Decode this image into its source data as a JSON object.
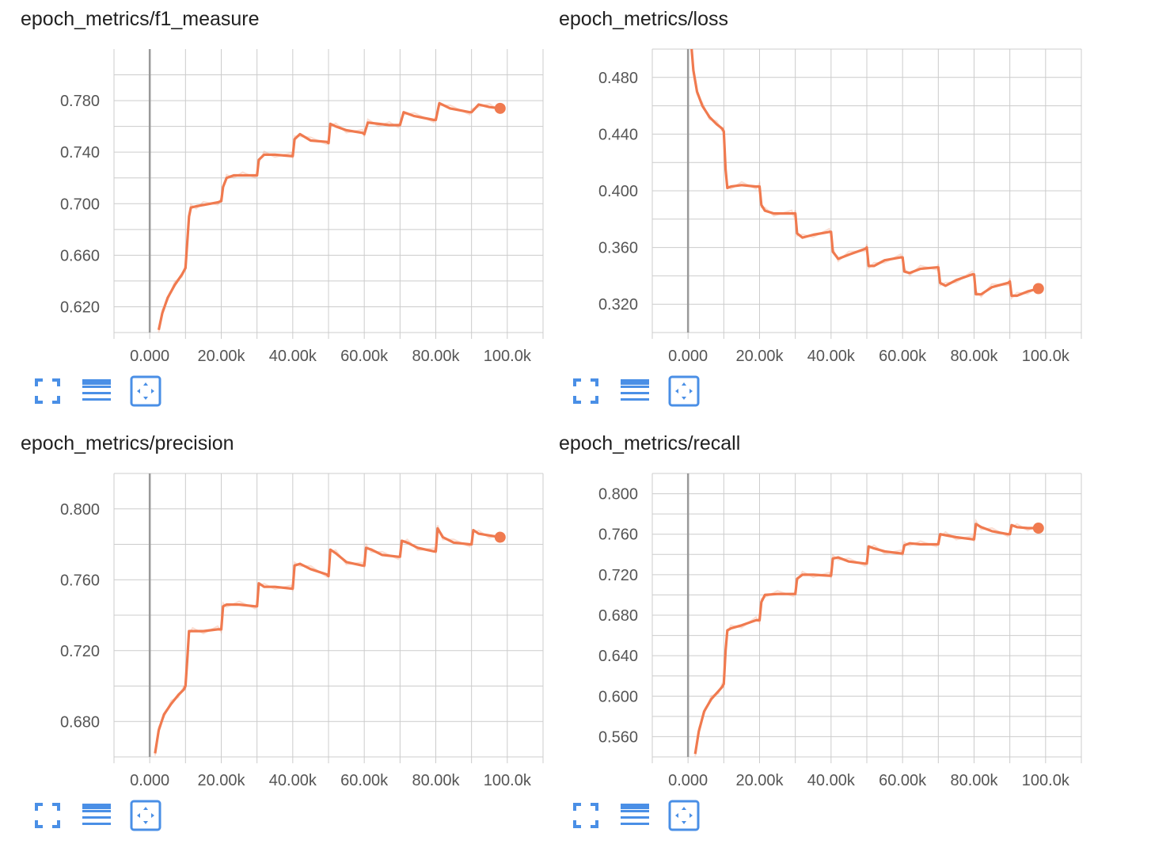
{
  "accent_color": "#f07a4f",
  "axis_color": "#999999",
  "grid_color": "#cccccc",
  "controls": {
    "icons": [
      "fullscreen-icon",
      "list-icon",
      "fit-domain-icon"
    ],
    "color": "#4a8fe6"
  },
  "chart_data": [
    {
      "type": "line",
      "title": "epoch_metrics/f1_measure",
      "xlim": [
        -10000,
        110000
      ],
      "ylim": [
        0.6,
        0.82
      ],
      "xticks": [
        0,
        20000,
        40000,
        60000,
        80000,
        100000
      ],
      "xtick_labels": [
        "0.000",
        "20.00k",
        "40.00k",
        "60.00k",
        "80.00k",
        "100.0k"
      ],
      "yticks": [
        0.62,
        0.66,
        0.7,
        0.74,
        0.78
      ],
      "ytick_labels": [
        "0.620",
        "0.660",
        "0.700",
        "0.740",
        "0.780"
      ],
      "ygrid_minor": [
        0.6,
        0.64,
        0.68,
        0.72,
        0.76,
        0.8
      ],
      "grid": true,
      "series": [
        {
          "x": [
            2500,
            3500,
            5000,
            7000,
            9000,
            10000,
            11000,
            11500,
            13000,
            15000,
            19000,
            20000,
            20500,
            21500,
            23500,
            26000,
            29500,
            30000,
            30500,
            32000,
            35000,
            39500,
            40000,
            40500,
            42000,
            45000,
            49500,
            50000,
            50500,
            52000,
            55000,
            59500,
            60000,
            61000,
            64000,
            67000,
            69500,
            70000,
            71000,
            74000,
            79500,
            80000,
            81000,
            84000,
            89500,
            90000,
            92000,
            95000,
            98000
          ],
          "y": [
            0.602,
            0.615,
            0.627,
            0.637,
            0.645,
            0.65,
            0.69,
            0.697,
            0.698,
            0.699,
            0.701,
            0.702,
            0.713,
            0.72,
            0.722,
            0.722,
            0.722,
            0.722,
            0.734,
            0.738,
            0.738,
            0.737,
            0.737,
            0.75,
            0.754,
            0.749,
            0.748,
            0.747,
            0.762,
            0.76,
            0.757,
            0.755,
            0.754,
            0.763,
            0.762,
            0.761,
            0.761,
            0.761,
            0.771,
            0.768,
            0.765,
            0.765,
            0.778,
            0.774,
            0.771,
            0.771,
            0.777,
            0.775,
            0.774
          ]
        }
      ]
    },
    {
      "type": "line",
      "title": "epoch_metrics/loss",
      "xlim": [
        -10000,
        110000
      ],
      "ylim": [
        0.3,
        0.5
      ],
      "xticks": [
        0,
        20000,
        40000,
        60000,
        80000,
        100000
      ],
      "xtick_labels": [
        "0.000",
        "20.00k",
        "40.00k",
        "60.00k",
        "80.00k",
        "100.0k"
      ],
      "yticks": [
        0.32,
        0.36,
        0.4,
        0.44,
        0.48
      ],
      "ytick_labels": [
        "0.320",
        "0.360",
        "0.400",
        "0.440",
        "0.480"
      ],
      "ygrid_minor": [
        0.3,
        0.34,
        0.38,
        0.42,
        0.46,
        0.5
      ],
      "grid": true,
      "series": [
        {
          "x": [
            1000,
            1500,
            2500,
            4000,
            6000,
            8000,
            9500,
            10000,
            10500,
            11000,
            12000,
            15000,
            19000,
            20000,
            20500,
            21500,
            24000,
            29000,
            29500,
            30000,
            30500,
            32000,
            35000,
            39500,
            40000,
            40500,
            42000,
            45000,
            49500,
            50000,
            50500,
            52000,
            55000,
            59500,
            60000,
            60500,
            62000,
            65000,
            69500,
            70000,
            70500,
            72000,
            75000,
            79500,
            80000,
            80500,
            82000,
            85000,
            89500,
            90000,
            90500,
            92000,
            95000,
            98000
          ],
          "y": [
            0.5,
            0.485,
            0.47,
            0.46,
            0.452,
            0.447,
            0.444,
            0.442,
            0.415,
            0.402,
            0.403,
            0.404,
            0.403,
            0.403,
            0.39,
            0.386,
            0.384,
            0.384,
            0.384,
            0.384,
            0.37,
            0.367,
            0.369,
            0.371,
            0.371,
            0.357,
            0.352,
            0.355,
            0.359,
            0.36,
            0.347,
            0.347,
            0.351,
            0.353,
            0.353,
            0.343,
            0.342,
            0.345,
            0.346,
            0.346,
            0.335,
            0.333,
            0.337,
            0.341,
            0.341,
            0.327,
            0.327,
            0.332,
            0.335,
            0.336,
            0.326,
            0.326,
            0.329,
            0.331
          ]
        }
      ]
    },
    {
      "type": "line",
      "title": "epoch_metrics/precision",
      "xlim": [
        -10000,
        110000
      ],
      "ylim": [
        0.66,
        0.82
      ],
      "xticks": [
        0,
        20000,
        40000,
        60000,
        80000,
        100000
      ],
      "xtick_labels": [
        "0.000",
        "20.00k",
        "40.00k",
        "60.00k",
        "80.00k",
        "100.0k"
      ],
      "yticks": [
        0.68,
        0.72,
        0.76,
        0.8
      ],
      "ytick_labels": [
        "0.680",
        "0.720",
        "0.760",
        "0.800"
      ],
      "ygrid_minor": [
        0.66,
        0.7,
        0.74,
        0.78,
        0.82
      ],
      "grid": true,
      "series": [
        {
          "x": [
            1500,
            2500,
            4000,
            6000,
            8000,
            9500,
            10000,
            10500,
            11000,
            12000,
            15000,
            19000,
            20000,
            20500,
            21500,
            25000,
            29500,
            30000,
            30500,
            32000,
            35000,
            39500,
            40000,
            40500,
            42000,
            45000,
            49500,
            50000,
            50500,
            52000,
            55000,
            59500,
            60000,
            60500,
            62000,
            65000,
            69500,
            70000,
            70500,
            72000,
            75000,
            79500,
            80000,
            80500,
            82000,
            85000,
            89500,
            90000,
            90500,
            92000,
            95000,
            98000
          ],
          "y": [
            0.662,
            0.675,
            0.684,
            0.69,
            0.695,
            0.698,
            0.7,
            0.715,
            0.731,
            0.731,
            0.731,
            0.732,
            0.732,
            0.745,
            0.746,
            0.746,
            0.745,
            0.745,
            0.758,
            0.756,
            0.756,
            0.755,
            0.755,
            0.768,
            0.769,
            0.766,
            0.763,
            0.762,
            0.777,
            0.775,
            0.77,
            0.768,
            0.768,
            0.778,
            0.777,
            0.774,
            0.773,
            0.773,
            0.782,
            0.781,
            0.778,
            0.776,
            0.776,
            0.789,
            0.784,
            0.781,
            0.78,
            0.78,
            0.788,
            0.786,
            0.785,
            0.784
          ]
        }
      ]
    },
    {
      "type": "line",
      "title": "epoch_metrics/recall",
      "xlim": [
        -10000,
        110000
      ],
      "ylim": [
        0.54,
        0.82
      ],
      "xticks": [
        0,
        20000,
        40000,
        60000,
        80000,
        100000
      ],
      "xtick_labels": [
        "0.000",
        "20.00k",
        "40.00k",
        "60.00k",
        "80.00k",
        "100.0k"
      ],
      "yticks": [
        0.56,
        0.6,
        0.64,
        0.68,
        0.72,
        0.76,
        0.8
      ],
      "ytick_labels": [
        "0.560",
        "0.600",
        "0.640",
        "0.680",
        "0.720",
        "0.760",
        "0.800"
      ],
      "ygrid_minor": [
        0.54,
        0.58,
        0.62,
        0.66,
        0.7,
        0.74,
        0.78,
        0.82
      ],
      "grid": true,
      "series": [
        {
          "x": [
            2000,
            3000,
            4500,
            6500,
            8500,
            9500,
            10000,
            10500,
            11000,
            12000,
            15000,
            19000,
            20000,
            20500,
            21500,
            25000,
            29500,
            30000,
            30500,
            32000,
            35000,
            39500,
            40000,
            40500,
            42000,
            45000,
            49500,
            50000,
            50500,
            52000,
            55000,
            59500,
            60000,
            60500,
            62000,
            65000,
            69500,
            70000,
            70500,
            72000,
            75000,
            79500,
            80000,
            80500,
            82000,
            85000,
            89500,
            90000,
            90500,
            92000,
            95000,
            98000
          ],
          "y": [
            0.543,
            0.565,
            0.585,
            0.597,
            0.605,
            0.609,
            0.612,
            0.645,
            0.665,
            0.667,
            0.67,
            0.675,
            0.675,
            0.693,
            0.7,
            0.701,
            0.701,
            0.701,
            0.716,
            0.72,
            0.72,
            0.719,
            0.719,
            0.736,
            0.737,
            0.733,
            0.731,
            0.731,
            0.748,
            0.746,
            0.743,
            0.741,
            0.741,
            0.749,
            0.751,
            0.75,
            0.75,
            0.75,
            0.76,
            0.759,
            0.757,
            0.755,
            0.755,
            0.77,
            0.767,
            0.763,
            0.76,
            0.76,
            0.769,
            0.767,
            0.766,
            0.766
          ]
        }
      ]
    }
  ]
}
